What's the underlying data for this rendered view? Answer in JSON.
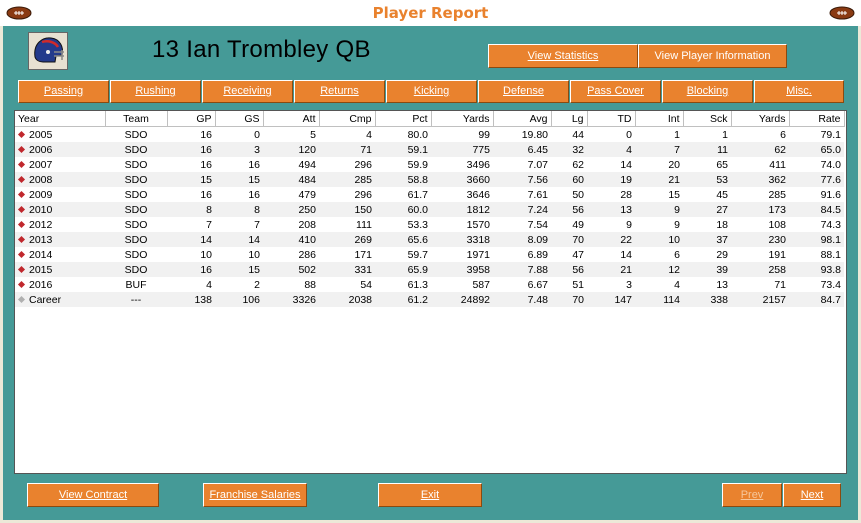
{
  "window": {
    "title": "Player Report"
  },
  "player": {
    "header": "13  Ian Trombley  QB"
  },
  "top_buttons": {
    "view_statistics": "View Statistics",
    "view_player_information": "View Player Information"
  },
  "tabs": [
    "Passing",
    "Rushing",
    "Receiving",
    "Returns",
    "Kicking",
    "Defense",
    "Pass Cover",
    "Blocking",
    "Misc."
  ],
  "active_tab": "Passing",
  "table": {
    "columns": [
      "Year",
      "Team",
      "GP",
      "GS",
      "Att",
      "Cmp",
      "Pct",
      "Yards",
      "Avg",
      "Lg",
      "TD",
      "Int",
      "Sck",
      "Yards",
      "Rate"
    ],
    "rows": [
      [
        "2005",
        "SDO",
        "16",
        "0",
        "5",
        "4",
        "80.0",
        "99",
        "19.80",
        "44",
        "0",
        "1",
        "1",
        "6",
        "79.1"
      ],
      [
        "2006",
        "SDO",
        "16",
        "3",
        "120",
        "71",
        "59.1",
        "775",
        "6.45",
        "32",
        "4",
        "7",
        "11",
        "62",
        "65.0"
      ],
      [
        "2007",
        "SDO",
        "16",
        "16",
        "494",
        "296",
        "59.9",
        "3496",
        "7.07",
        "62",
        "14",
        "20",
        "65",
        "411",
        "74.0"
      ],
      [
        "2008",
        "SDO",
        "15",
        "15",
        "484",
        "285",
        "58.8",
        "3660",
        "7.56",
        "60",
        "19",
        "21",
        "53",
        "362",
        "77.6"
      ],
      [
        "2009",
        "SDO",
        "16",
        "16",
        "479",
        "296",
        "61.7",
        "3646",
        "7.61",
        "50",
        "28",
        "15",
        "45",
        "285",
        "91.6"
      ],
      [
        "2010",
        "SDO",
        "8",
        "8",
        "250",
        "150",
        "60.0",
        "1812",
        "7.24",
        "56",
        "13",
        "9",
        "27",
        "173",
        "84.5"
      ],
      [
        "2012",
        "SDO",
        "7",
        "7",
        "208",
        "111",
        "53.3",
        "1570",
        "7.54",
        "49",
        "9",
        "9",
        "18",
        "108",
        "74.3"
      ],
      [
        "2013",
        "SDO",
        "14",
        "14",
        "410",
        "269",
        "65.6",
        "3318",
        "8.09",
        "70",
        "22",
        "10",
        "37",
        "230",
        "98.1"
      ],
      [
        "2014",
        "SDO",
        "10",
        "10",
        "286",
        "171",
        "59.7",
        "1971",
        "6.89",
        "47",
        "14",
        "6",
        "29",
        "191",
        "88.1"
      ],
      [
        "2015",
        "SDO",
        "16",
        "15",
        "502",
        "331",
        "65.9",
        "3958",
        "7.88",
        "56",
        "21",
        "12",
        "39",
        "258",
        "93.8"
      ],
      [
        "2016",
        "BUF",
        "4",
        "2",
        "88",
        "54",
        "61.3",
        "587",
        "6.67",
        "51",
        "3",
        "4",
        "13",
        "71",
        "73.4"
      ],
      [
        "Career",
        "---",
        "138",
        "106",
        "3326",
        "2038",
        "61.2",
        "24892",
        "7.48",
        "70",
        "147",
        "114",
        "338",
        "2157",
        "84.7"
      ]
    ]
  },
  "bottom_buttons": {
    "view_contract": "View Contract",
    "franchise_salaries": "Franchise Salaries",
    "exit": "Exit",
    "prev": "Prev",
    "next": "Next"
  },
  "colors": {
    "accent": "#e9822e",
    "panel": "#459a97",
    "season_marker": "#c0282d",
    "career_marker": "#b0b0b0"
  },
  "icons": {
    "left": "football-icon",
    "right": "football-icon",
    "team": "helmet-icon"
  }
}
